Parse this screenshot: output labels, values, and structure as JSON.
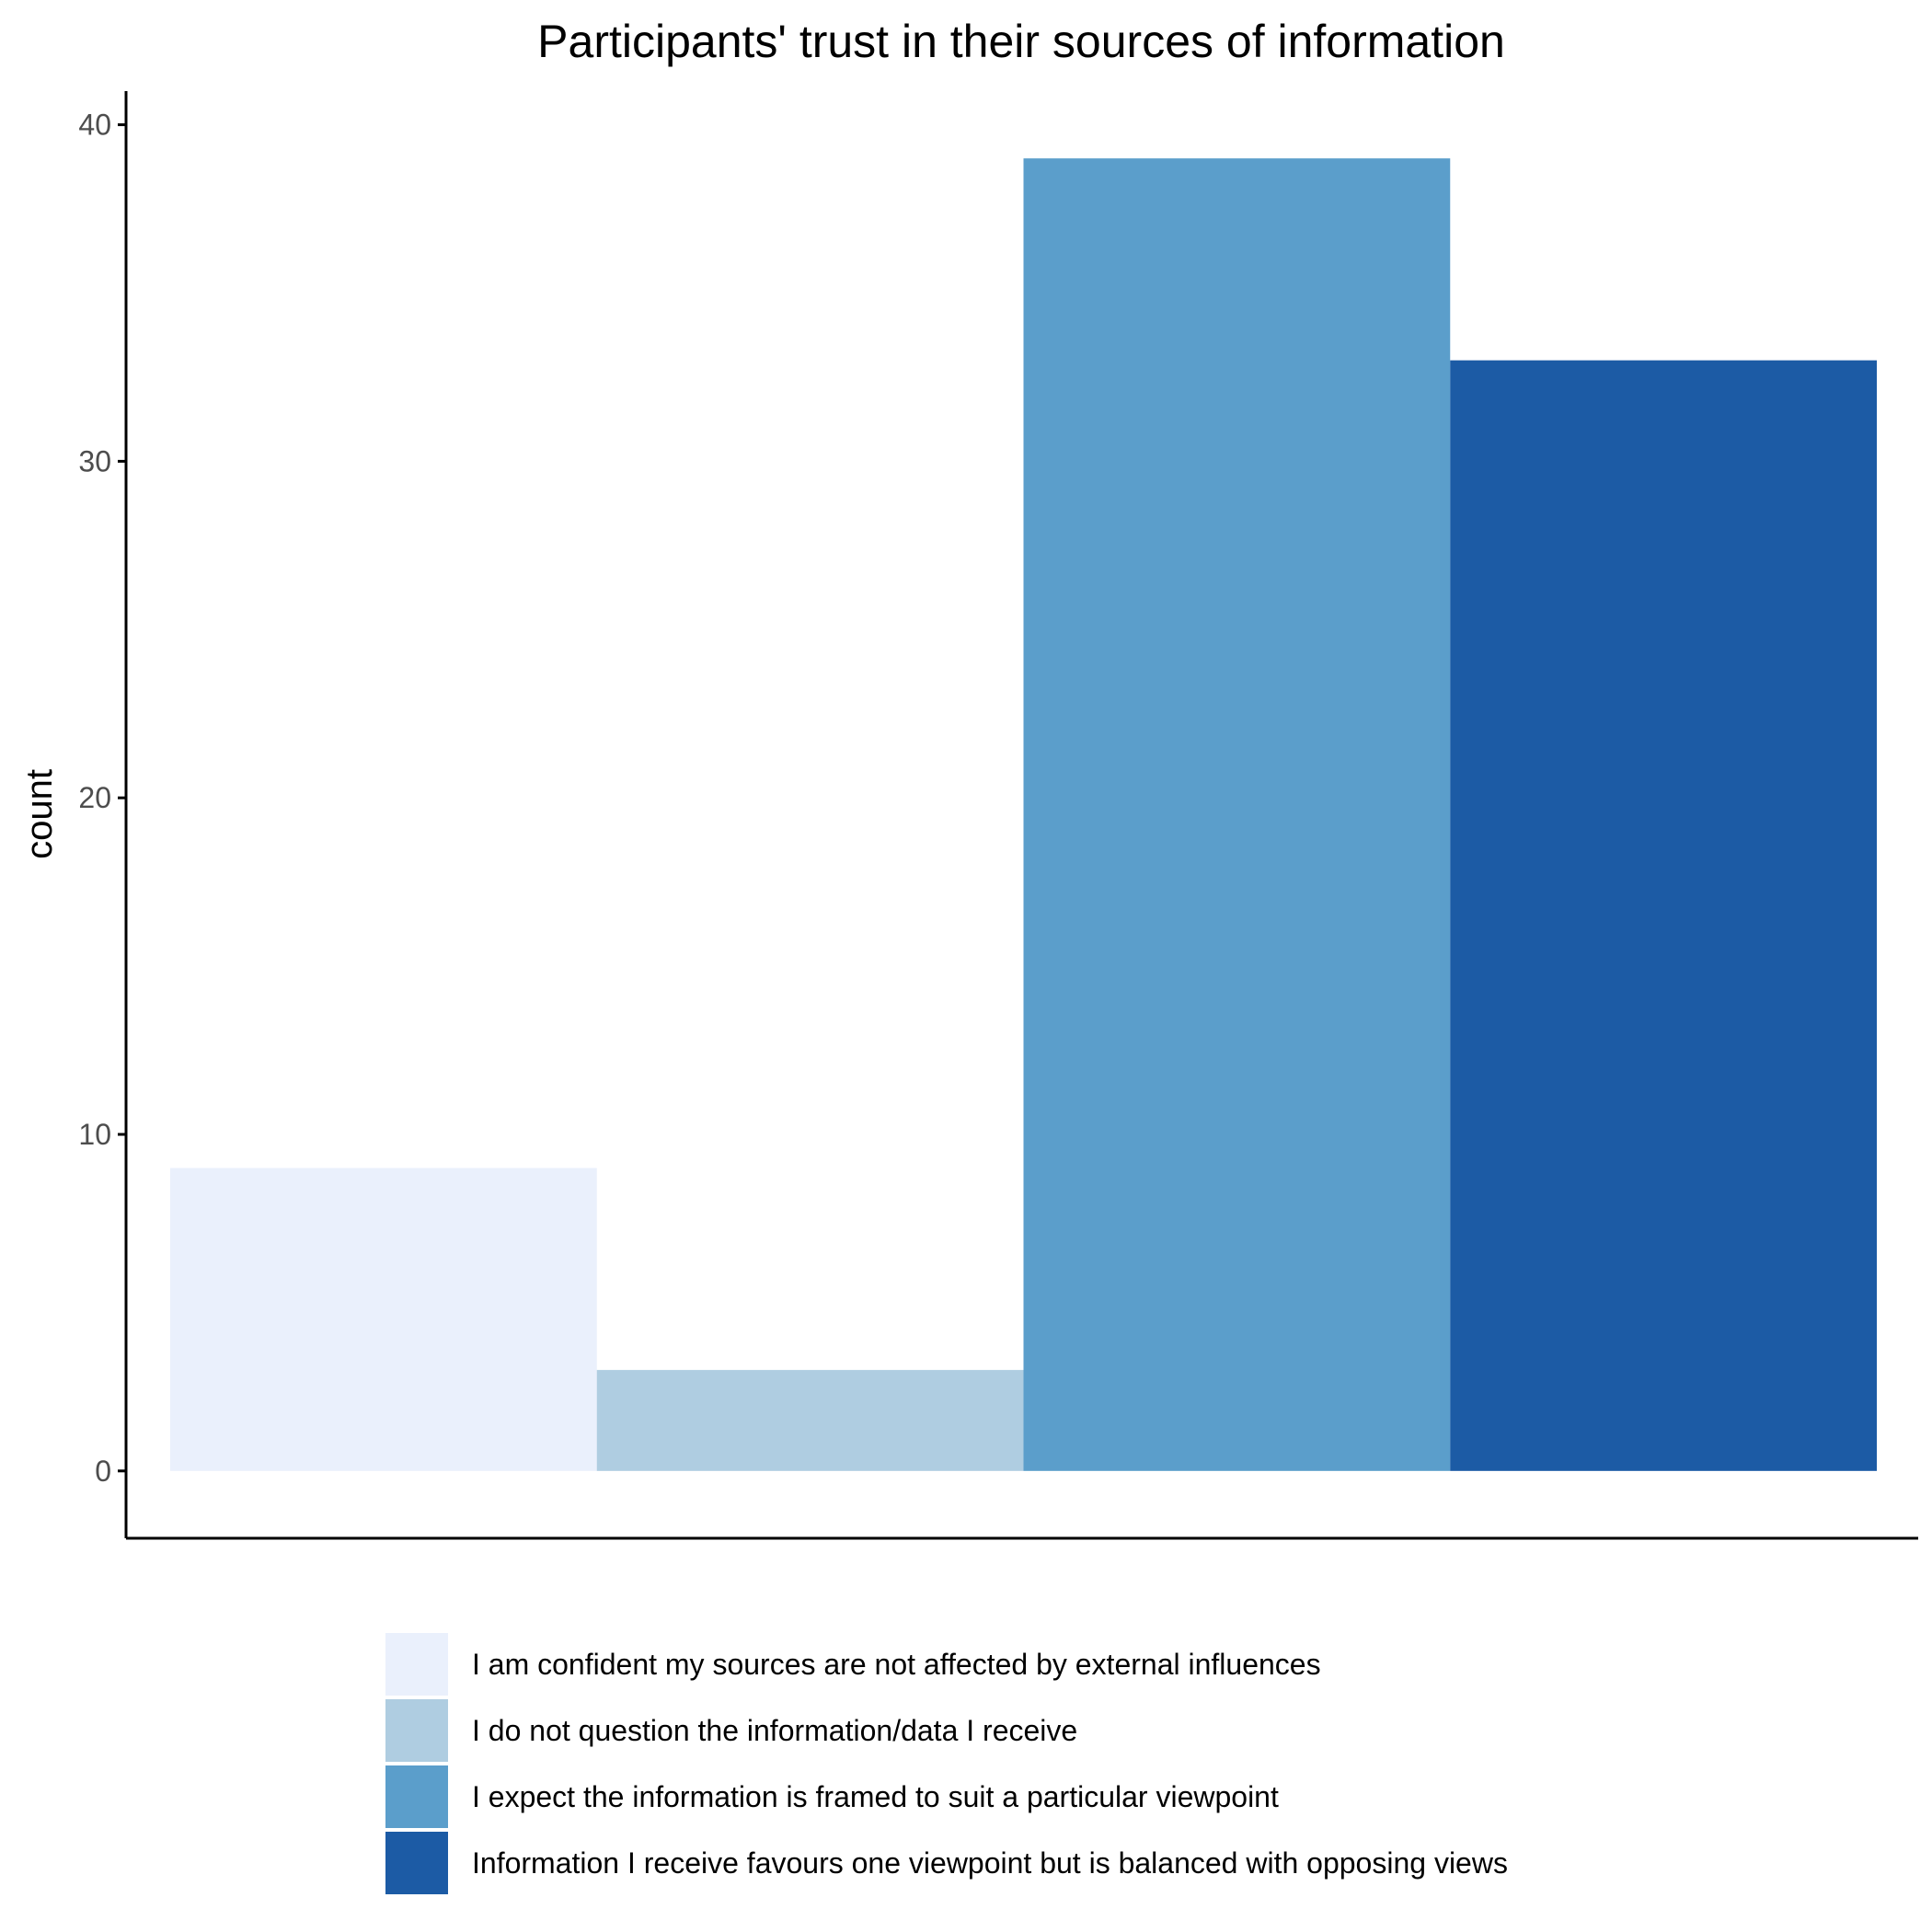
{
  "chart_data": {
    "type": "bar",
    "title": "Participants' trust in their sources of information",
    "xlabel": "",
    "ylabel": "count",
    "ylim": [
      -2,
      41
    ],
    "yticks": [
      0,
      10,
      20,
      30,
      40
    ],
    "grid": false,
    "legend_position": "bottom",
    "categories": [
      "I am confident my sources are not affected by external influences",
      "I do not question the information/data I receive",
      "I expect the information is framed to suit a particular viewpoint",
      "Information I receive favours one viewpoint but is balanced with opposing views"
    ],
    "values": [
      9,
      3,
      39,
      33
    ],
    "colors": [
      "#eaf0fc",
      "#afcde1",
      "#5b9ecb",
      "#1c5ba5"
    ]
  }
}
